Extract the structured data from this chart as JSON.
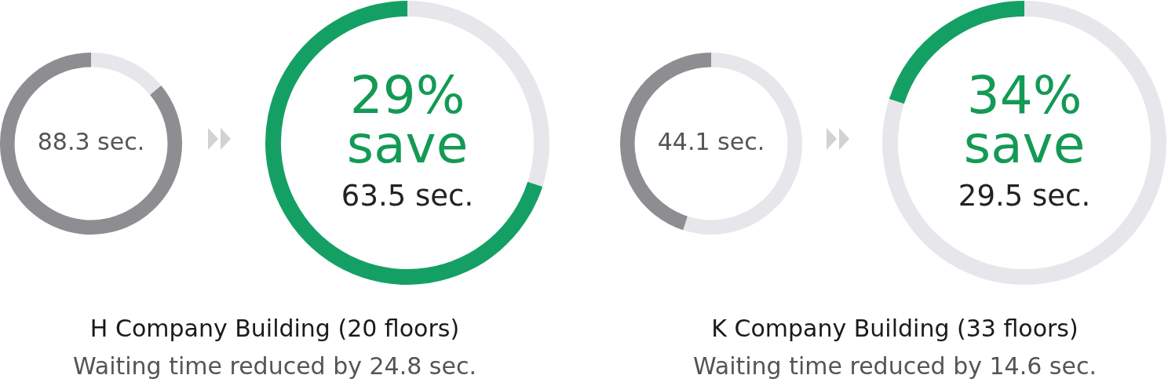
{
  "chart_data": [
    {
      "type": "donut",
      "categories": [
        null,
        null
      ],
      "values": [
        14,
        86
      ],
      "colors": [
        "#e7e6ea",
        "#8e8d92"
      ],
      "annotations": [
        "88.3 sec."
      ]
    },
    {
      "type": "donut",
      "title": "H Company Building (20 floors)",
      "subtitle": "Waiting time reduced by 24.8 sec.",
      "categories": [
        null,
        null
      ],
      "values": [
        30,
        70
      ],
      "colors": [
        "#e7e6ea",
        "#14a064"
      ],
      "annotations": [
        "29%",
        "save",
        "63.5 sec."
      ]
    },
    {
      "type": "donut",
      "categories": [
        null,
        null
      ],
      "values": [
        55,
        45
      ],
      "colors": [
        "#e7e6ea",
        "#8e8d92"
      ],
      "annotations": [
        "44.1 sec."
      ]
    },
    {
      "type": "donut",
      "title": "K Company Building (33 floors)",
      "subtitle": "Waiting time reduced by 14.6 sec.",
      "categories": [
        null,
        null
      ],
      "values": [
        80,
        20
      ],
      "colors": [
        "#e7e6ea",
        "#14a064"
      ],
      "annotations": [
        "34%",
        "save",
        "29.5 sec."
      ]
    }
  ]
}
